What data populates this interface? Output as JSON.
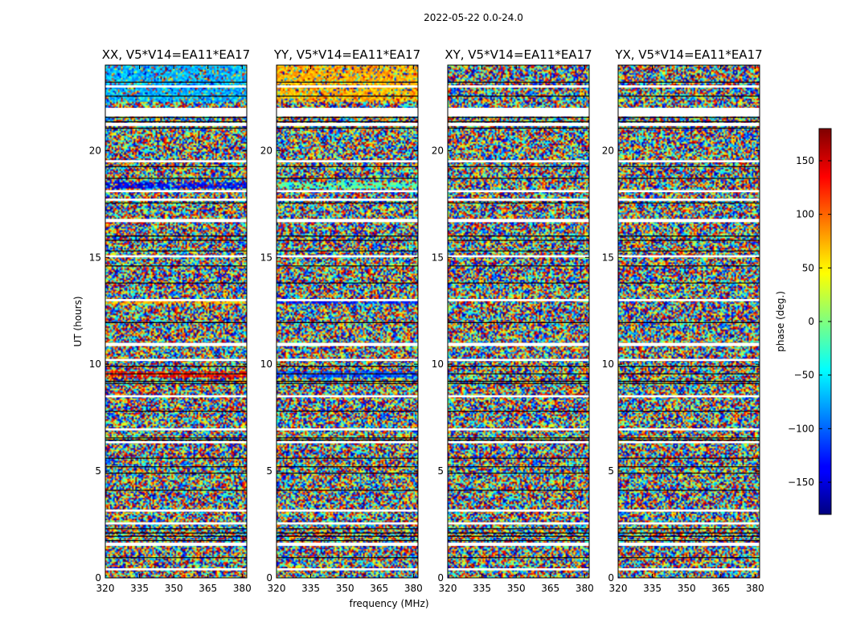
{
  "chart_data": {
    "type": "heatmap",
    "suptitle": "2022-05-22 0.0-24.0",
    "xlabel": "frequency (MHz)",
    "ylabel": "UT (hours)",
    "xlim": [
      320,
      382
    ],
    "ylim": [
      0,
      24
    ],
    "xticks": [
      320,
      335,
      350,
      365,
      380
    ],
    "yticks": [
      0,
      5,
      10,
      15,
      20
    ],
    "panels": [
      {
        "title": "XX, V5*V14=EA11*EA17",
        "band_hint": "blue-cyan"
      },
      {
        "title": "YY, V5*V14=EA11*EA17",
        "band_hint": "orange-yellow"
      },
      {
        "title": "XY, V5*V14=EA11*EA17",
        "band_hint": "noise"
      },
      {
        "title": "YX, V5*V14=EA11*EA17",
        "band_hint": "noise"
      }
    ],
    "colorbar": {
      "label": "phase (deg.)",
      "range": [
        -180,
        180
      ],
      "ticks": [
        -150,
        -100,
        -50,
        0,
        50,
        100,
        150
      ],
      "colormap": "jet"
    },
    "blank_rows_ut": [
      [
        0.35,
        0.45
      ],
      [
        1.5,
        1.65
      ],
      [
        2.5,
        2.6
      ],
      [
        3.1,
        3.2
      ],
      [
        6.3,
        6.4
      ],
      [
        6.9,
        7.0
      ],
      [
        8.45,
        8.55
      ],
      [
        10.15,
        10.25
      ],
      [
        10.85,
        11.0
      ],
      [
        12.95,
        13.05
      ],
      [
        15.0,
        15.1
      ],
      [
        16.65,
        16.8
      ],
      [
        17.65,
        17.75
      ],
      [
        18.05,
        18.15
      ],
      [
        19.45,
        19.55
      ],
      [
        21.15,
        21.3
      ],
      [
        21.6,
        22.0
      ],
      [
        22.95,
        23.05
      ]
    ],
    "dark_lines_ut": [
      0.95,
      1.75,
      1.95,
      2.1,
      2.3,
      4.1,
      4.9,
      5.2,
      5.6,
      6.45,
      6.55,
      7.8,
      9.1,
      9.2,
      9.55,
      9.9,
      11.95,
      13.8,
      14.6,
      15.3,
      15.8,
      16.0,
      17.55,
      18.7,
      19.25,
      21.05,
      21.35,
      21.55,
      22.55,
      23.2
    ]
  }
}
